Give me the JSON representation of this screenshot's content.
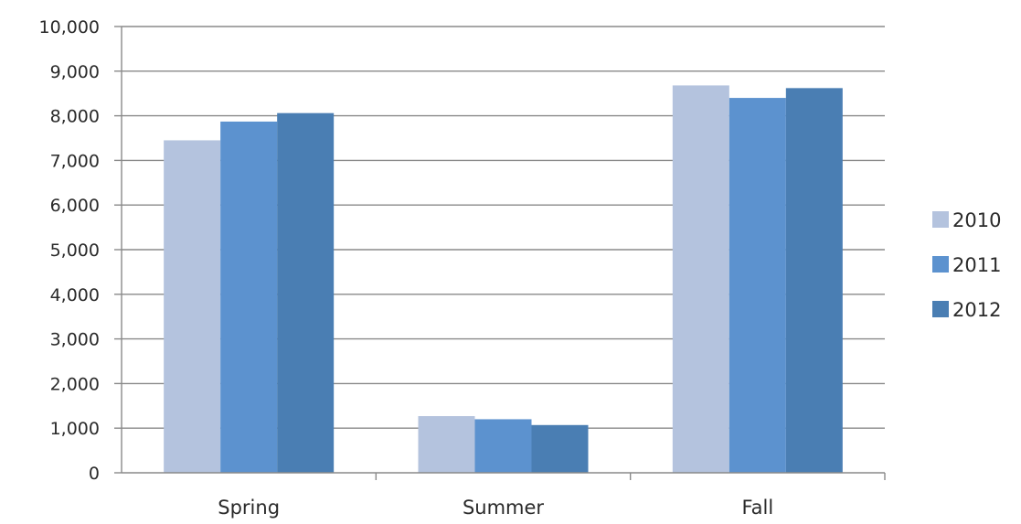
{
  "chart_data": {
    "type": "bar",
    "title": "",
    "xlabel": "",
    "ylabel": "",
    "categories": [
      "Spring",
      "Summer",
      "Fall"
    ],
    "series": [
      {
        "name": "2010",
        "values": [
          7450,
          1270,
          8680
        ],
        "color": "#b4c3de"
      },
      {
        "name": "2011",
        "values": [
          7870,
          1200,
          8400
        ],
        "color": "#5c92cf"
      },
      {
        "name": "2012",
        "values": [
          8060,
          1070,
          8620
        ],
        "color": "#4a7eb3"
      }
    ],
    "ylim": [
      0,
      10000
    ],
    "yticks": [
      0,
      1000,
      2000,
      3000,
      4000,
      5000,
      6000,
      7000,
      8000,
      9000,
      10000
    ],
    "ytick_labels": [
      "0",
      "1,000",
      "2,000",
      "3,000",
      "4,000",
      "5,000",
      "6,000",
      "7,000",
      "8,000",
      "9,000",
      "10,000"
    ],
    "grid": true,
    "legend_position": "right"
  }
}
